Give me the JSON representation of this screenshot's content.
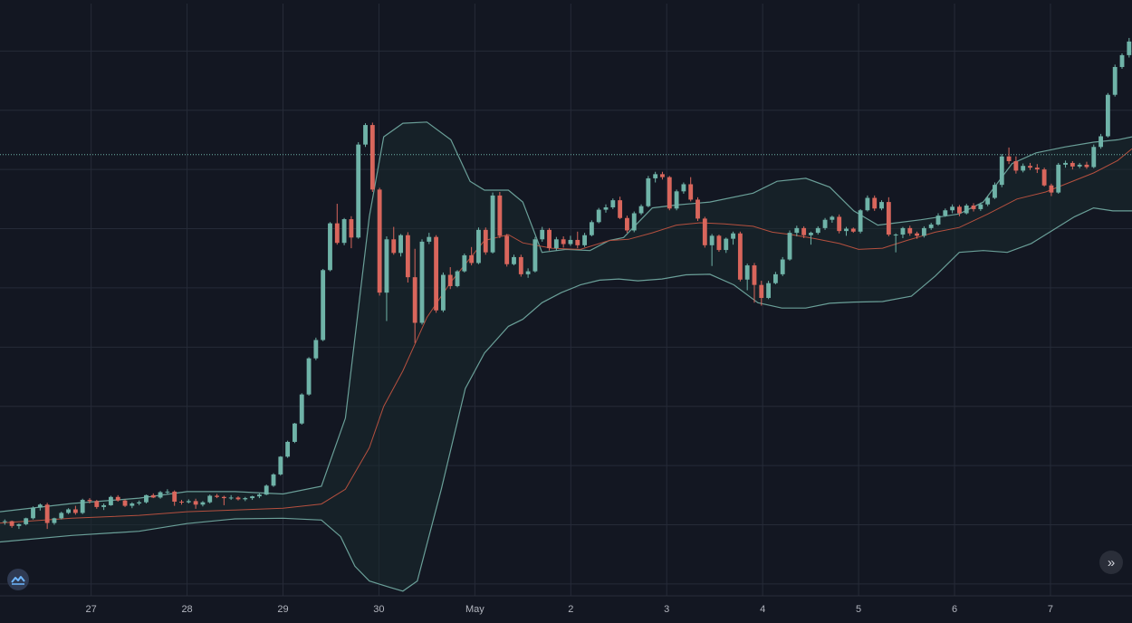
{
  "colors": {
    "background": "#131722",
    "grid": "#262b38",
    "up": "#6fb3a8",
    "down": "#d9665c",
    "band": "#6a9f98",
    "band_fill": "#1a2a2e",
    "basis": "#b5503f",
    "price_line": "#6fb3a8",
    "axis_text": "#b2b5be"
  },
  "icons": {
    "logo": "tradingview-logo-icon",
    "scroll": "double-chevron-right-icon"
  },
  "chart_data": {
    "type": "candlestick",
    "indicator": "bollinger-bands",
    "x_ticks": [
      "27",
      "28",
      "29",
      "30",
      "May",
      "2",
      "3",
      "4",
      "5",
      "6",
      "7"
    ],
    "x_tick_positions": [
      0.5,
      1.5,
      2.5,
      3.5,
      4.5,
      5.5,
      6.5,
      7.5,
      8.5,
      9.5,
      10.5
    ],
    "x_range": [
      -0.45,
      11.35
    ],
    "y_range": [
      0,
      100
    ],
    "y_grid": [
      2,
      12,
      22,
      32,
      42,
      52,
      62,
      72,
      82,
      92
    ],
    "x_grid": [
      0.5,
      1.5,
      2.5,
      3.5,
      4.5,
      5.5,
      6.5,
      7.5,
      8.5,
      9.5,
      10.5
    ],
    "price_line": 74.5,
    "candles_ohlc": [
      [
        12.6,
        12.9,
        12.0,
        12.6
      ],
      [
        12.6,
        12.7,
        11.5,
        11.8
      ],
      [
        11.8,
        12.2,
        11.3,
        12.1
      ],
      [
        12.1,
        13.2,
        11.9,
        13.1
      ],
      [
        13.1,
        15.1,
        12.9,
        14.9
      ],
      [
        14.9,
        15.6,
        14.4,
        15.4
      ],
      [
        15.4,
        15.7,
        11.3,
        12.3
      ],
      [
        12.3,
        13.2,
        12.0,
        13.1
      ],
      [
        13.1,
        14.2,
        12.9,
        14.0
      ],
      [
        14.0,
        14.8,
        13.8,
        14.6
      ],
      [
        14.6,
        15.2,
        13.7,
        14.0
      ],
      [
        14.0,
        16.4,
        13.8,
        16.2
      ],
      [
        16.2,
        16.5,
        15.6,
        16.0
      ],
      [
        16.0,
        16.2,
        14.7,
        15.0
      ],
      [
        15.0,
        15.6,
        14.5,
        15.3
      ],
      [
        15.3,
        16.9,
        15.2,
        16.7
      ],
      [
        16.7,
        17.0,
        15.9,
        16.1
      ],
      [
        16.1,
        16.3,
        15.0,
        15.2
      ],
      [
        15.2,
        15.8,
        14.8,
        15.6
      ],
      [
        15.6,
        16.1,
        15.3,
        15.8
      ],
      [
        15.8,
        17.1,
        15.6,
        17.0
      ],
      [
        17.0,
        17.3,
        16.5,
        16.6
      ],
      [
        16.6,
        17.7,
        16.4,
        17.5
      ],
      [
        17.5,
        18.0,
        17.1,
        17.6
      ],
      [
        17.6,
        17.8,
        15.2,
        15.9
      ],
      [
        15.9,
        16.2,
        15.4,
        15.8
      ],
      [
        15.8,
        16.3,
        15.6,
        16.0
      ],
      [
        16.0,
        16.4,
        14.7,
        15.4
      ],
      [
        15.4,
        16.0,
        15.1,
        15.8
      ],
      [
        15.8,
        17.1,
        15.6,
        16.9
      ],
      [
        16.9,
        17.2,
        16.5,
        16.7
      ],
      [
        16.7,
        16.9,
        15.3,
        16.5
      ],
      [
        16.5,
        17.0,
        16.2,
        16.6
      ],
      [
        16.6,
        16.8,
        16.1,
        16.3
      ],
      [
        16.3,
        16.7,
        16.0,
        16.5
      ],
      [
        16.5,
        16.9,
        16.2,
        16.8
      ],
      [
        16.8,
        17.3,
        16.5,
        17.1
      ],
      [
        17.1,
        18.8,
        17.0,
        18.6
      ],
      [
        18.6,
        20.7,
        18.4,
        20.5
      ],
      [
        20.5,
        23.6,
        20.3,
        23.5
      ],
      [
        23.5,
        26.2,
        23.3,
        26.0
      ],
      [
        26.0,
        29.2,
        25.8,
        29.1
      ],
      [
        29.1,
        34.2,
        28.9,
        34.0
      ],
      [
        34.0,
        40.3,
        33.8,
        40.1
      ],
      [
        40.1,
        43.6,
        39.8,
        43.2
      ],
      [
        43.2,
        55.2,
        43.0,
        55.0
      ],
      [
        55.0,
        63.1,
        54.8,
        62.9
      ],
      [
        62.9,
        66.2,
        59.3,
        59.6
      ],
      [
        59.6,
        63.8,
        59.2,
        63.6
      ],
      [
        63.6,
        64.1,
        58.7,
        60.5
      ],
      [
        60.5,
        76.6,
        60.3,
        76.2
      ],
      [
        76.2,
        79.8,
        75.8,
        79.5
      ],
      [
        79.5,
        79.9,
        68.2,
        68.6
      ],
      [
        68.6,
        68.9,
        50.7,
        51.2
      ],
      [
        51.2,
        60.7,
        46.4,
        60.2
      ],
      [
        60.2,
        62.3,
        57.6,
        57.9
      ],
      [
        57.9,
        61.1,
        57.3,
        60.9
      ],
      [
        60.9,
        61.4,
        52.9,
        53.8
      ],
      [
        53.8,
        58.6,
        42.7,
        46.1
      ],
      [
        46.1,
        60.2,
        45.8,
        59.8
      ],
      [
        59.8,
        61.3,
        59.4,
        60.6
      ],
      [
        60.6,
        60.9,
        47.8,
        48.2
      ],
      [
        48.2,
        54.6,
        47.9,
        54.2
      ],
      [
        54.2,
        55.5,
        51.8,
        52.3
      ],
      [
        52.3,
        55.0,
        52.1,
        54.8
      ],
      [
        54.8,
        57.8,
        54.6,
        57.5
      ],
      [
        57.5,
        58.9,
        55.8,
        56.2
      ],
      [
        56.2,
        62.2,
        56.0,
        61.8
      ],
      [
        61.8,
        62.2,
        57.6,
        58.0
      ],
      [
        58.0,
        68.1,
        57.8,
        67.6
      ],
      [
        67.6,
        68.2,
        60.4,
        60.8
      ],
      [
        60.8,
        61.1,
        55.6,
        56.0
      ],
      [
        56.0,
        57.6,
        55.8,
        57.2
      ],
      [
        57.2,
        57.6,
        53.9,
        54.3
      ],
      [
        54.3,
        55.3,
        53.7,
        54.8
      ],
      [
        54.8,
        60.6,
        54.6,
        60.2
      ],
      [
        60.2,
        62.3,
        59.8,
        61.8
      ],
      [
        61.8,
        62.1,
        58.3,
        58.7
      ],
      [
        58.7,
        60.6,
        58.3,
        60.2
      ],
      [
        60.2,
        60.7,
        58.8,
        59.4
      ],
      [
        59.4,
        60.8,
        59.1,
        60.1
      ],
      [
        60.1,
        61.5,
        58.7,
        59.2
      ],
      [
        59.2,
        61.3,
        58.9,
        60.9
      ],
      [
        60.9,
        63.4,
        60.7,
        63.1
      ],
      [
        63.1,
        65.5,
        62.9,
        65.2
      ],
      [
        65.2,
        66.1,
        64.7,
        65.6
      ],
      [
        65.6,
        67.1,
        65.3,
        66.8
      ],
      [
        66.8,
        67.4,
        63.6,
        63.8
      ],
      [
        63.8,
        64.2,
        61.3,
        61.7
      ],
      [
        61.7,
        64.9,
        61.4,
        64.6
      ],
      [
        64.6,
        66.1,
        64.3,
        65.8
      ],
      [
        65.8,
        70.9,
        65.6,
        70.5
      ],
      [
        70.5,
        71.6,
        69.8,
        71.2
      ],
      [
        71.2,
        71.6,
        70.3,
        70.7
      ],
      [
        70.7,
        70.9,
        65.1,
        65.4
      ],
      [
        65.4,
        68.6,
        65.1,
        68.3
      ],
      [
        68.3,
        69.8,
        67.9,
        69.5
      ],
      [
        69.5,
        70.7,
        66.6,
        66.9
      ],
      [
        66.9,
        67.3,
        63.3,
        63.7
      ],
      [
        63.7,
        64.0,
        58.8,
        59.2
      ],
      [
        59.2,
        61.1,
        55.7,
        60.8
      ],
      [
        60.8,
        61.0,
        58.1,
        58.4
      ],
      [
        58.4,
        60.5,
        57.9,
        60.3
      ],
      [
        60.3,
        61.5,
        59.3,
        61.2
      ],
      [
        61.2,
        61.5,
        53.1,
        53.4
      ],
      [
        53.4,
        56.1,
        51.6,
        55.8
      ],
      [
        55.8,
        56.2,
        49.5,
        52.5
      ],
      [
        52.5,
        53.2,
        49.0,
        50.3
      ],
      [
        50.3,
        53.2,
        50.1,
        52.8
      ],
      [
        52.8,
        54.7,
        52.6,
        54.3
      ],
      [
        54.3,
        57.2,
        54.0,
        56.8
      ],
      [
        56.8,
        61.7,
        56.6,
        61.3
      ],
      [
        61.3,
        62.5,
        60.7,
        62.1
      ],
      [
        62.1,
        62.4,
        60.4,
        60.9
      ],
      [
        60.9,
        61.5,
        59.3,
        61.3
      ],
      [
        61.3,
        62.4,
        61.0,
        62.1
      ],
      [
        62.1,
        63.8,
        61.8,
        63.5
      ],
      [
        63.5,
        64.2,
        63.0,
        64.0
      ],
      [
        64.0,
        64.4,
        61.2,
        61.6
      ],
      [
        61.6,
        62.3,
        60.8,
        62.0
      ],
      [
        62.0,
        62.2,
        61.3,
        61.5
      ],
      [
        61.5,
        65.3,
        61.2,
        65.1
      ],
      [
        65.1,
        67.6,
        64.9,
        67.2
      ],
      [
        67.2,
        67.6,
        65.0,
        65.4
      ],
      [
        65.4,
        66.8,
        65.1,
        66.5
      ],
      [
        66.5,
        67.3,
        60.7,
        61.0
      ],
      [
        61.0,
        61.2,
        58.0,
        61.0
      ],
      [
        61.0,
        62.3,
        60.4,
        62.1
      ],
      [
        62.1,
        62.5,
        60.8,
        61.2
      ],
      [
        61.2,
        61.5,
        60.3,
        60.8
      ],
      [
        60.8,
        62.4,
        60.5,
        62.1
      ],
      [
        62.1,
        63.0,
        61.8,
        62.7
      ],
      [
        62.7,
        64.6,
        62.5,
        64.2
      ],
      [
        64.2,
        65.4,
        64.0,
        65.1
      ],
      [
        65.1,
        66.1,
        64.6,
        65.7
      ],
      [
        65.7,
        66.0,
        64.1,
        64.6
      ],
      [
        64.6,
        66.2,
        64.4,
        65.9
      ],
      [
        65.9,
        66.3,
        64.9,
        65.3
      ],
      [
        65.3,
        66.4,
        65.0,
        66.1
      ],
      [
        66.1,
        67.5,
        65.8,
        67.2
      ],
      [
        67.2,
        69.8,
        67.0,
        69.4
      ],
      [
        69.4,
        74.6,
        69.0,
        74.2
      ],
      [
        74.2,
        75.7,
        72.9,
        73.4
      ],
      [
        73.4,
        74.2,
        71.3,
        71.8
      ],
      [
        71.8,
        73.0,
        71.5,
        72.6
      ],
      [
        72.6,
        73.1,
        71.9,
        72.3
      ],
      [
        72.3,
        72.9,
        71.4,
        72.0
      ],
      [
        72.0,
        72.3,
        69.1,
        69.3
      ],
      [
        69.3,
        69.6,
        67.5,
        68.1
      ],
      [
        68.1,
        73.1,
        67.9,
        72.8
      ],
      [
        72.8,
        73.5,
        72.3,
        73.1
      ],
      [
        73.1,
        73.4,
        72.0,
        72.5
      ],
      [
        72.5,
        73.1,
        72.2,
        72.8
      ],
      [
        72.8,
        73.3,
        72.1,
        72.4
      ],
      [
        72.4,
        76.2,
        72.2,
        75.8
      ],
      [
        75.8,
        78.0,
        75.5,
        77.6
      ],
      [
        77.6,
        84.9,
        77.4,
        84.6
      ],
      [
        84.6,
        89.7,
        84.3,
        89.3
      ],
      [
        89.3,
        91.6,
        89.0,
        91.3
      ],
      [
        91.3,
        94.2,
        90.9,
        93.6
      ]
    ],
    "bb_upper": [
      [
        -0.45,
        14.2
      ],
      [
        0.3,
        15.6
      ],
      [
        1.0,
        16.5
      ],
      [
        1.5,
        17.6
      ],
      [
        2.0,
        17.6
      ],
      [
        2.5,
        17.2
      ],
      [
        2.9,
        18.5
      ],
      [
        3.15,
        30.0
      ],
      [
        3.4,
        64.0
      ],
      [
        3.55,
        77.5
      ],
      [
        3.75,
        79.8
      ],
      [
        4.0,
        80.0
      ],
      [
        4.25,
        77.0
      ],
      [
        4.45,
        70.0
      ],
      [
        4.6,
        68.5
      ],
      [
        4.85,
        68.5
      ],
      [
        5.0,
        66.5
      ],
      [
        5.2,
        58.0
      ],
      [
        5.45,
        58.5
      ],
      [
        5.7,
        58.3
      ],
      [
        5.9,
        60.0
      ],
      [
        6.05,
        60.5
      ],
      [
        6.35,
        65.5
      ],
      [
        6.6,
        66.0
      ],
      [
        6.95,
        66.5
      ],
      [
        7.4,
        68.0
      ],
      [
        7.65,
        70.0
      ],
      [
        7.95,
        70.5
      ],
      [
        8.2,
        69.0
      ],
      [
        8.45,
        65.0
      ],
      [
        8.7,
        62.6
      ],
      [
        8.9,
        63.0
      ],
      [
        9.15,
        63.5
      ],
      [
        9.55,
        64.5
      ],
      [
        9.8,
        66.5
      ],
      [
        10.1,
        73.0
      ],
      [
        10.35,
        74.8
      ],
      [
        10.65,
        75.8
      ],
      [
        10.95,
        76.6
      ],
      [
        11.2,
        77.0
      ],
      [
        11.35,
        77.5
      ]
    ],
    "bb_basis": [
      [
        -0.45,
        12.3
      ],
      [
        0.3,
        13.1
      ],
      [
        1.0,
        13.6
      ],
      [
        1.5,
        14.2
      ],
      [
        2.0,
        14.5
      ],
      [
        2.5,
        14.8
      ],
      [
        2.9,
        15.5
      ],
      [
        3.15,
        18.0
      ],
      [
        3.4,
        25.0
      ],
      [
        3.55,
        32.0
      ],
      [
        3.75,
        38.0
      ],
      [
        4.0,
        47.0
      ],
      [
        4.25,
        53.0
      ],
      [
        4.45,
        57.0
      ],
      [
        4.6,
        60.0
      ],
      [
        4.85,
        61.0
      ],
      [
        5.0,
        59.6
      ],
      [
        5.3,
        58.7
      ],
      [
        5.6,
        58.5
      ],
      [
        5.9,
        60.0
      ],
      [
        6.1,
        60.2
      ],
      [
        6.35,
        61.3
      ],
      [
        6.6,
        62.6
      ],
      [
        6.85,
        63.0
      ],
      [
        7.1,
        62.8
      ],
      [
        7.4,
        62.4
      ],
      [
        7.6,
        61.4
      ],
      [
        7.8,
        61.0
      ],
      [
        8.05,
        60.3
      ],
      [
        8.3,
        59.5
      ],
      [
        8.5,
        58.5
      ],
      [
        8.75,
        58.7
      ],
      [
        9.0,
        60.0
      ],
      [
        9.3,
        61.4
      ],
      [
        9.55,
        62.2
      ],
      [
        9.85,
        64.5
      ],
      [
        10.15,
        67.0
      ],
      [
        10.45,
        68.2
      ],
      [
        10.7,
        69.8
      ],
      [
        10.95,
        71.4
      ],
      [
        11.2,
        73.5
      ],
      [
        11.35,
        75.5
      ]
    ],
    "bb_lower": [
      [
        -0.45,
        9.1
      ],
      [
        0.3,
        10.2
      ],
      [
        1.0,
        10.9
      ],
      [
        1.5,
        12.2
      ],
      [
        2.0,
        13.0
      ],
      [
        2.5,
        13.1
      ],
      [
        2.9,
        12.8
      ],
      [
        3.1,
        10.0
      ],
      [
        3.25,
        5.0
      ],
      [
        3.4,
        2.5
      ],
      [
        3.6,
        1.5
      ],
      [
        3.75,
        0.8
      ],
      [
        3.9,
        2.5
      ],
      [
        4.15,
        18.0
      ],
      [
        4.4,
        35.0
      ],
      [
        4.6,
        41.0
      ],
      [
        4.85,
        45.5
      ],
      [
        5.0,
        46.7
      ],
      [
        5.2,
        49.5
      ],
      [
        5.4,
        51.2
      ],
      [
        5.6,
        52.5
      ],
      [
        5.8,
        53.3
      ],
      [
        6.0,
        53.5
      ],
      [
        6.2,
        53.2
      ],
      [
        6.45,
        53.5
      ],
      [
        6.7,
        54.2
      ],
      [
        6.95,
        54.3
      ],
      [
        7.2,
        52.5
      ],
      [
        7.45,
        49.5
      ],
      [
        7.7,
        48.6
      ],
      [
        7.95,
        48.6
      ],
      [
        8.2,
        49.4
      ],
      [
        8.45,
        49.6
      ],
      [
        8.75,
        49.7
      ],
      [
        9.05,
        50.6
      ],
      [
        9.3,
        54.0
      ],
      [
        9.55,
        58.0
      ],
      [
        9.8,
        58.3
      ],
      [
        10.05,
        58.0
      ],
      [
        10.3,
        59.5
      ],
      [
        10.55,
        62.0
      ],
      [
        10.75,
        64.0
      ],
      [
        10.95,
        65.5
      ],
      [
        11.15,
        65.0
      ],
      [
        11.35,
        65.0
      ]
    ]
  }
}
